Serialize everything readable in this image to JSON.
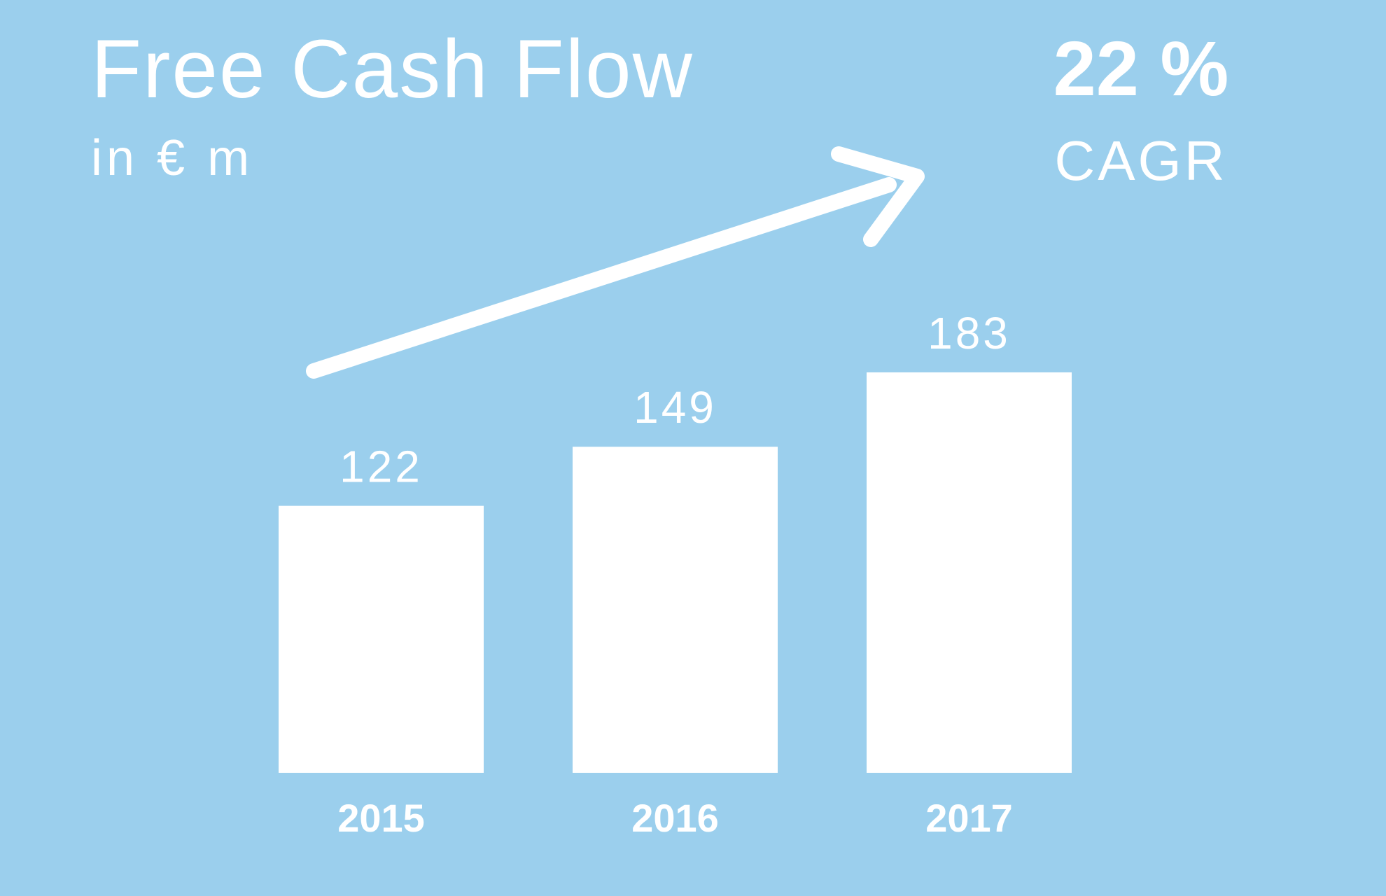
{
  "header": {
    "title": "Free Cash Flow",
    "subtitle": "in € m"
  },
  "kpi": {
    "value": "22 %",
    "label": "CAGR"
  },
  "colors": {
    "background": "#9bcfed",
    "foreground": "#ffffff"
  },
  "chart_data": {
    "type": "bar",
    "title": "Free Cash Flow",
    "subtitle": "in € m",
    "categories": [
      "2015",
      "2016",
      "2017"
    ],
    "values": [
      122,
      149,
      183
    ],
    "xlabel": "",
    "ylabel": "",
    "ylim": [
      0,
      270
    ],
    "grid": false,
    "legend": "none",
    "annotations": [
      "22 %",
      "CAGR"
    ],
    "trend_arrow": true
  }
}
